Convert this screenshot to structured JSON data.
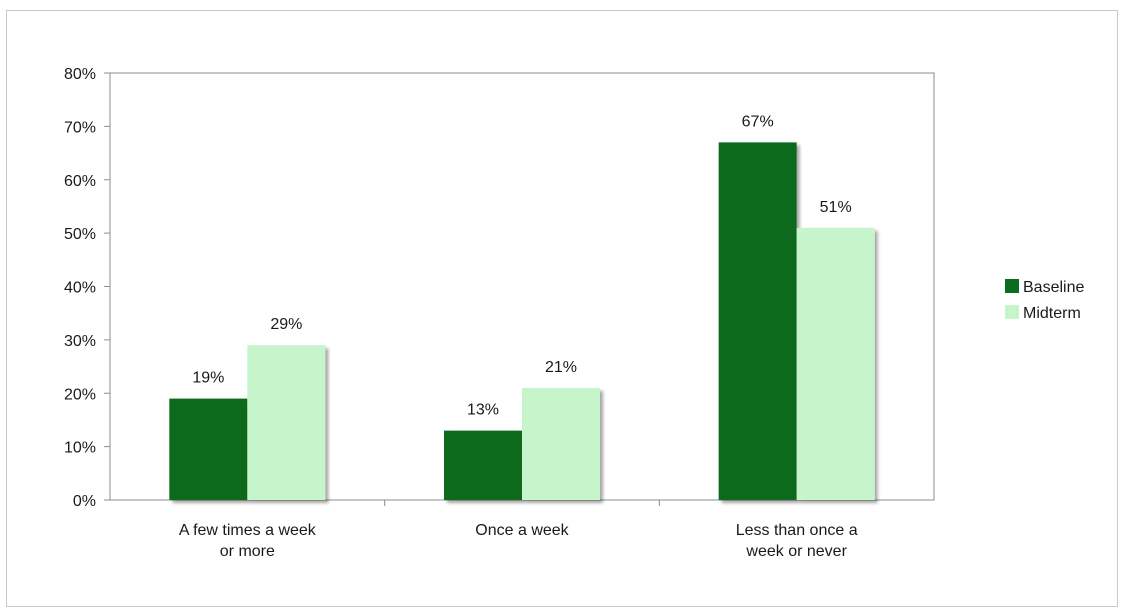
{
  "chart_data": {
    "type": "bar",
    "categories": [
      [
        "A few times a week",
        "or more"
      ],
      [
        "Once a week"
      ],
      [
        "Less than once a",
        "week or never"
      ]
    ],
    "series": [
      {
        "name": "Baseline",
        "values": [
          19,
          13,
          67
        ],
        "labels": [
          "19%",
          "13%",
          "67%"
        ],
        "color": "#0b6b1f"
      },
      {
        "name": "Midterm",
        "values": [
          29,
          21,
          51
        ],
        "labels": [
          "29%",
          "21%",
          "51%"
        ],
        "color": "#c6f5cc"
      }
    ],
    "ylim": [
      0,
      80
    ],
    "yticks": [
      {
        "value": 0,
        "label": "0%"
      },
      {
        "value": 10,
        "label": "10%"
      },
      {
        "value": 20,
        "label": "20%"
      },
      {
        "value": 30,
        "label": "30%"
      },
      {
        "value": 40,
        "label": "40%"
      },
      {
        "value": 50,
        "label": "50%"
      },
      {
        "value": 60,
        "label": "60%"
      },
      {
        "value": 70,
        "label": "70%"
      },
      {
        "value": 80,
        "label": "80%"
      }
    ],
    "grid": false,
    "legend_position": "right",
    "title": "",
    "xlabel": "",
    "ylabel": ""
  }
}
